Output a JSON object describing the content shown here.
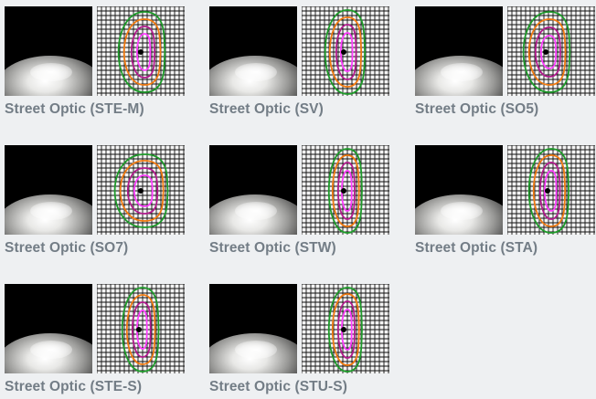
{
  "optics": [
    {
      "name": "Street Optic (STE-M)"
    },
    {
      "name": "Street Optic (SV)"
    },
    {
      "name": "Street Optic (SO5)"
    },
    {
      "name": "Street Optic (SO7)"
    },
    {
      "name": "Street Optic (STW)"
    },
    {
      "name": "Street Optic (STA)"
    },
    {
      "name": "Street Optic (STE-S)"
    },
    {
      "name": "Street Optic (STU-S)"
    }
  ],
  "colors": {
    "background": "#eef0f2",
    "label": "#737d86",
    "contour_outer": "#1e9a2a",
    "contour_mid": "#f07a10",
    "contour_inner": "#b01a8c",
    "contour_core": "#ff3cff"
  }
}
